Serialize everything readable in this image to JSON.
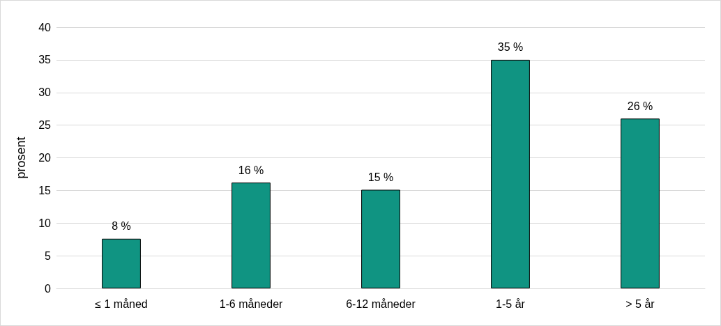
{
  "chart_data": {
    "type": "bar",
    "ylabel": "prosent",
    "categories": [
      "≤ 1 måned",
      "1-6 måneder",
      "6-12 måneder",
      "1-5 år",
      "> 5 år"
    ],
    "values": [
      7.6,
      16.2,
      15.1,
      35,
      26
    ],
    "value_labels": [
      "8 %",
      "16 %",
      "15 %",
      "35 %",
      "26 %"
    ],
    "color": "#109482",
    "ylim": [
      0,
      40
    ],
    "yticks": [
      0,
      5,
      10,
      15,
      20,
      25,
      30,
      35,
      40
    ],
    "grid": "y"
  }
}
